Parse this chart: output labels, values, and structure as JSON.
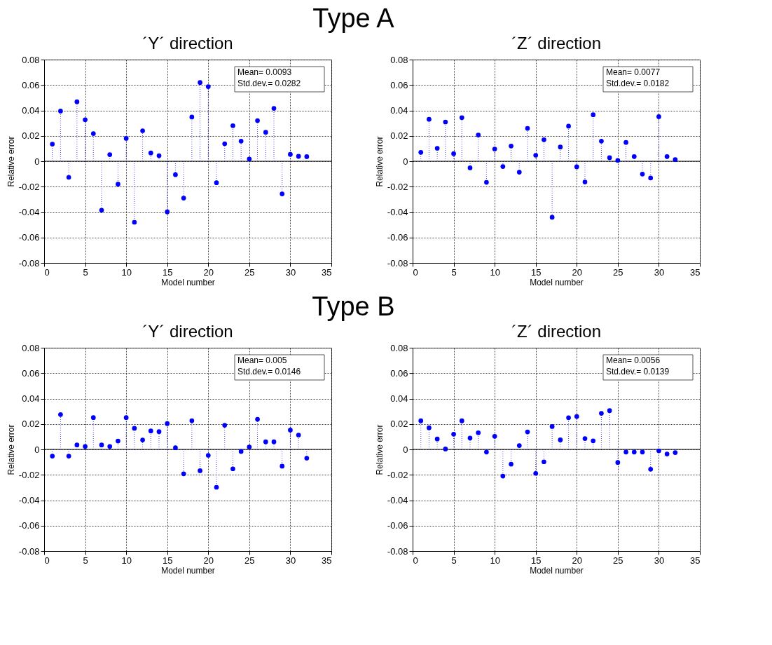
{
  "chart_data": [
    {
      "type": "lollipop",
      "title": "´Y´ direction",
      "xlabel": "Model number",
      "ylabel": "Relative error",
      "annotations": [
        "Type A",
        "Mean= 0.0093",
        "Std.dev.= 0.0282"
      ],
      "x": [
        1,
        2,
        3,
        4,
        5,
        6,
        7,
        8,
        9,
        10,
        11,
        12,
        13,
        14,
        15,
        16,
        17,
        18,
        19,
        20,
        21,
        22,
        23,
        24,
        25,
        26,
        27,
        28,
        29,
        30,
        31,
        32
      ],
      "xlim": [
        0,
        35
      ],
      "xticks": [
        0,
        5,
        10,
        15,
        20,
        25,
        30,
        35
      ],
      "ylim": [
        -0.08,
        0.08
      ],
      "yticks": [
        -0.08,
        -0.06,
        -0.04,
        -0.02,
        0,
        0.02,
        0.04,
        0.06,
        0.08
      ],
      "grid": true,
      "legend": false,
      "marker": "circle",
      "line_style": "dotted",
      "series": [
        {
          "color": "#0000ff",
          "values": [
            0.0135,
            0.0395,
            -0.0127,
            0.0468,
            0.0327,
            0.0218,
            -0.0385,
            0.0052,
            -0.018,
            0.018,
            -0.048,
            0.024,
            0.0065,
            0.0044,
            -0.0398,
            -0.0106,
            -0.029,
            0.0348,
            0.062,
            0.0587,
            -0.0169,
            0.0138,
            0.028,
            0.0158,
            0.0018,
            0.032,
            0.0228,
            0.0416,
            -0.0257,
            0.0054,
            0.0039,
            0.0036
          ]
        }
      ]
    },
    {
      "type": "lollipop",
      "title": "´Z´ direction",
      "xlabel": "Model number",
      "ylabel": "Relative error",
      "annotations": [
        "Mean= 0.0077",
        "Std.dev.= 0.0182"
      ],
      "x": [
        1,
        2,
        3,
        4,
        5,
        6,
        7,
        8,
        9,
        10,
        11,
        12,
        13,
        14,
        15,
        16,
        17,
        18,
        19,
        20,
        21,
        22,
        23,
        24,
        25,
        26,
        27,
        28,
        29,
        30,
        31,
        32
      ],
      "xlim": [
        0,
        35
      ],
      "xticks": [
        0,
        5,
        10,
        15,
        20,
        25,
        30,
        35
      ],
      "ylim": [
        -0.08,
        0.08
      ],
      "yticks": [
        -0.08,
        -0.06,
        -0.04,
        -0.02,
        0,
        0.02,
        0.04,
        0.06,
        0.08
      ],
      "grid": true,
      "legend": false,
      "marker": "circle",
      "line_style": "dotted",
      "series": [
        {
          "color": "#0000ff",
          "values": [
            0.007,
            0.033,
            0.0102,
            0.0309,
            0.006,
            0.0343,
            -0.0052,
            0.0207,
            -0.0166,
            0.0096,
            -0.0042,
            0.012,
            -0.0086,
            0.0259,
            0.0047,
            0.0169,
            -0.0441,
            0.0112,
            0.0276,
            -0.0044,
            -0.0163,
            0.0366,
            0.0158,
            0.0028,
            0.0007,
            0.0148,
            0.0037,
            -0.0101,
            -0.0132,
            0.0351,
            0.0037,
            0.0013
          ]
        }
      ]
    },
    {
      "type": "lollipop",
      "title": "´Y´ direction",
      "xlabel": "Model number",
      "ylabel": "Relative error",
      "annotations": [
        "Type B",
        "Mean= 0.005",
        "Std.dev.= 0.0146"
      ],
      "x": [
        1,
        2,
        3,
        4,
        5,
        6,
        7,
        8,
        9,
        10,
        11,
        12,
        13,
        14,
        15,
        16,
        17,
        18,
        19,
        20,
        21,
        22,
        23,
        24,
        25,
        26,
        27,
        28,
        29,
        30,
        31,
        32
      ],
      "xlim": [
        0,
        35
      ],
      "xticks": [
        0,
        5,
        10,
        15,
        20,
        25,
        30,
        35
      ],
      "ylim": [
        -0.08,
        0.08
      ],
      "yticks": [
        -0.08,
        -0.06,
        -0.04,
        -0.02,
        0,
        0.02,
        0.04,
        0.06,
        0.08
      ],
      "grid": true,
      "legend": false,
      "marker": "circle",
      "line_style": "dotted",
      "series": [
        {
          "color": "#0000ff",
          "values": [
            -0.0053,
            0.0274,
            -0.0053,
            0.0035,
            0.0023,
            0.025,
            0.0035,
            0.0023,
            0.0066,
            0.025,
            0.0166,
            0.0074,
            0.0145,
            0.014,
            0.0203,
            0.0013,
            -0.0192,
            0.0226,
            -0.0168,
            -0.0047,
            -0.0298,
            0.019,
            -0.0153,
            -0.0016,
            0.0019,
            0.0237,
            0.006,
            0.006,
            -0.0132,
            0.0152,
            0.0113,
            -0.0069
          ]
        }
      ]
    },
    {
      "type": "lollipop",
      "title": "´Z´ direction",
      "xlabel": "Model number",
      "ylabel": "Relative error",
      "annotations": [
        "Mean= 0.0056",
        "Std.dev.= 0.0139"
      ],
      "x": [
        1,
        2,
        3,
        4,
        5,
        6,
        7,
        8,
        9,
        10,
        11,
        12,
        13,
        14,
        15,
        16,
        17,
        18,
        19,
        20,
        21,
        22,
        23,
        24,
        25,
        26,
        27,
        28,
        29,
        30,
        31,
        32
      ],
      "xlim": [
        0,
        35
      ],
      "xticks": [
        0,
        5,
        10,
        15,
        20,
        25,
        30,
        35
      ],
      "ylim": [
        -0.08,
        0.08
      ],
      "yticks": [
        -0.08,
        -0.06,
        -0.04,
        -0.02,
        0,
        0.02,
        0.04,
        0.06,
        0.08
      ],
      "grid": true,
      "legend": false,
      "marker": "circle",
      "line_style": "dotted",
      "series": [
        {
          "color": "#0000ff",
          "values": [
            0.0225,
            0.017,
            0.0082,
            0.0003,
            0.012,
            0.0225,
            0.0089,
            0.0131,
            -0.0021,
            0.0103,
            -0.021,
            -0.0116,
            0.003,
            0.0138,
            -0.0189,
            -0.0098,
            0.018,
            0.0075,
            0.0249,
            0.0259,
            0.0085,
            0.0067,
            0.0284,
            0.0305,
            -0.0103,
            -0.0021,
            -0.0021,
            -0.0021,
            -0.0156,
            -0.0011,
            -0.0036,
            -0.0025
          ]
        }
      ]
    }
  ]
}
